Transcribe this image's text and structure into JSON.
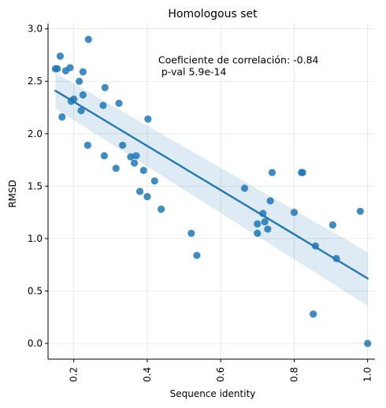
{
  "chart_data": {
    "type": "scatter",
    "title": "Homologous set",
    "xlabel": "Sequence identity",
    "ylabel": "RMSD",
    "xlim": [
      0.13,
      1.02
    ],
    "ylim": [
      -0.15,
      3.05
    ],
    "xticks": [
      "0.2",
      "0.4",
      "0.6",
      "0.8",
      "1.0"
    ],
    "xtick_values": [
      0.2,
      0.4,
      0.6,
      0.8,
      1.0
    ],
    "yticks": [
      "0.0",
      "0.5",
      "1.0",
      "1.5",
      "2.0",
      "2.5",
      "3.0"
    ],
    "ytick_values": [
      0.0,
      0.5,
      1.0,
      1.5,
      2.0,
      2.5,
      3.0
    ],
    "grid": true,
    "annotation": [
      "Coeficiente de correlación: -0.84",
      " p-val 5.9e-14"
    ],
    "annotation_position": [
      0.43,
      2.67
    ],
    "point_color": "#1f77b4",
    "band_color": "#1f77b4",
    "points": [
      [
        0.15,
        2.62
      ],
      [
        0.155,
        2.62
      ],
      [
        0.163,
        2.74
      ],
      [
        0.168,
        2.16
      ],
      [
        0.178,
        2.6
      ],
      [
        0.19,
        2.63
      ],
      [
        0.193,
        2.31
      ],
      [
        0.2,
        2.33
      ],
      [
        0.215,
        2.5
      ],
      [
        0.22,
        2.22
      ],
      [
        0.225,
        2.37
      ],
      [
        0.225,
        2.59
      ],
      [
        0.238,
        1.89
      ],
      [
        0.24,
        2.9
      ],
      [
        0.28,
        2.27
      ],
      [
        0.283,
        1.79
      ],
      [
        0.285,
        2.44
      ],
      [
        0.315,
        1.67
      ],
      [
        0.323,
        2.29
      ],
      [
        0.333,
        1.89
      ],
      [
        0.355,
        1.78
      ],
      [
        0.365,
        1.72
      ],
      [
        0.37,
        1.79
      ],
      [
        0.38,
        1.45
      ],
      [
        0.39,
        1.65
      ],
      [
        0.4,
        1.4
      ],
      [
        0.402,
        2.14
      ],
      [
        0.42,
        1.55
      ],
      [
        0.438,
        1.28
      ],
      [
        0.52,
        1.05
      ],
      [
        0.535,
        0.84
      ],
      [
        0.665,
        1.48
      ],
      [
        0.7,
        1.14
      ],
      [
        0.7,
        1.05
      ],
      [
        0.715,
        1.24
      ],
      [
        0.72,
        1.16
      ],
      [
        0.728,
        1.09
      ],
      [
        0.735,
        1.36
      ],
      [
        0.74,
        1.63
      ],
      [
        0.8,
        1.25
      ],
      [
        0.82,
        1.63
      ],
      [
        0.823,
        1.63
      ],
      [
        0.852,
        0.28
      ],
      [
        0.858,
        0.93
      ],
      [
        0.905,
        1.13
      ],
      [
        0.915,
        0.81
      ],
      [
        0.98,
        1.26
      ],
      [
        1.0,
        0.0
      ]
    ],
    "regression": {
      "x": [
        0.15,
        1.0
      ],
      "y": [
        2.41,
        0.62
      ],
      "ci_lower": [
        2.24,
        0.36
      ],
      "ci_upper": [
        2.58,
        0.87
      ]
    }
  }
}
